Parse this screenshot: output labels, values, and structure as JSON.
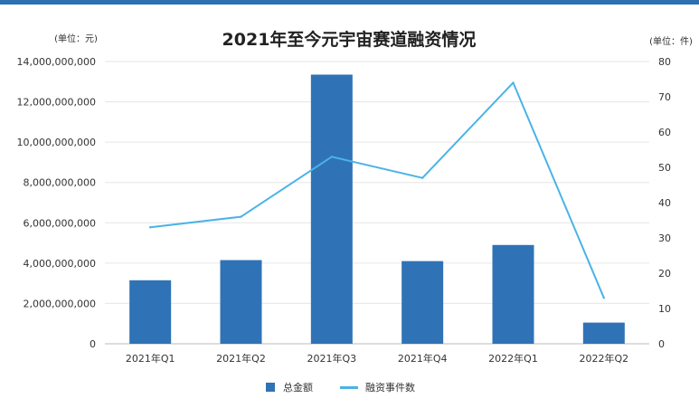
{
  "colors": {
    "top_bar": "#2c6fb3",
    "bar": "#2f73b6",
    "line": "#4bb3e6",
    "grid": "#e6e6e6",
    "text": "#333333"
  },
  "chart_data": {
    "type": "bar",
    "title": "2021年至今元宇宙赛道融资情况",
    "left_unit": "(单位：元)",
    "right_unit": "(单位：件)",
    "categories": [
      "2021年Q1",
      "2021年Q2",
      "2021年Q3",
      "2021年Q4",
      "2022年Q1",
      "2022年Q2"
    ],
    "left_axis": {
      "min": 0,
      "max": 14000000000,
      "ticks": [
        "0",
        "2,000,000,000",
        "4,000,000,000",
        "6,000,000,000",
        "8,000,000,000",
        "10,000,000,000",
        "12,000,000,000",
        "14,000,000,000"
      ]
    },
    "right_axis": {
      "min": 0,
      "max": 80,
      "ticks": [
        "0",
        "10",
        "20",
        "30",
        "40",
        "50",
        "60",
        "70",
        "80"
      ]
    },
    "series": [
      {
        "name": "总金额",
        "kind": "bar",
        "axis": "left",
        "values": [
          3150000000,
          4150000000,
          13350000000,
          4100000000,
          4900000000,
          1050000000
        ]
      },
      {
        "name": "融资事件数",
        "kind": "line",
        "axis": "right",
        "values": [
          33,
          36,
          53,
          47,
          74,
          13
        ]
      }
    ],
    "grid": true,
    "legend_position": "bottom-center"
  }
}
